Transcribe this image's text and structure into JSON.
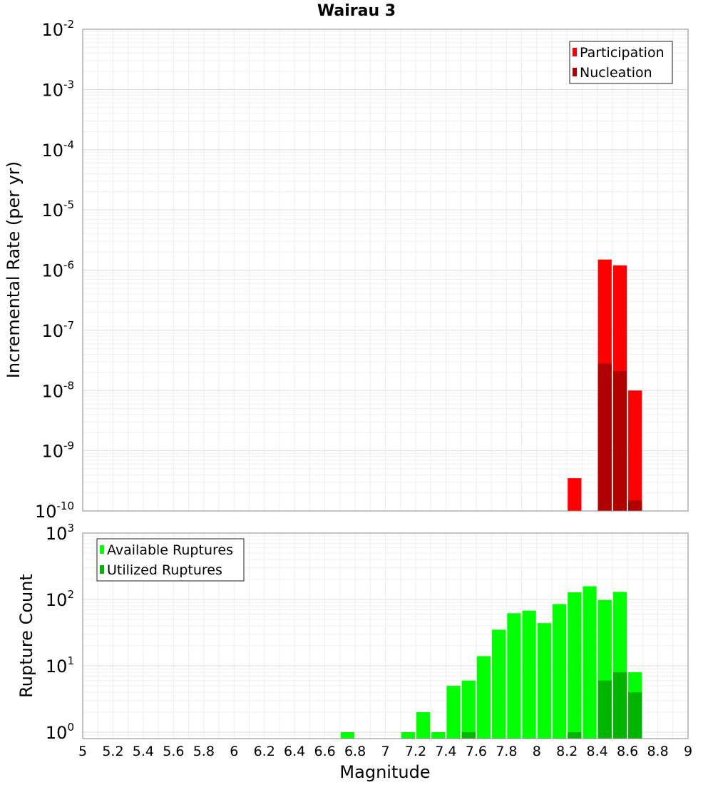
{
  "chart_data": [
    {
      "type": "bar",
      "title": "Wairau 3",
      "xlabel": "",
      "ylabel": "Incremental Rate (per yr)",
      "yscale": "log",
      "xlim": [
        5,
        9
      ],
      "ylim": [
        1e-10,
        0.01
      ],
      "bin_width": 0.1,
      "grid": true,
      "legend": "top-right",
      "y_tick_labels": [
        {
          "base": "10",
          "exp": "-10"
        },
        {
          "base": "10",
          "exp": "-9"
        },
        {
          "base": "10",
          "exp": "-8"
        },
        {
          "base": "10",
          "exp": "-7"
        },
        {
          "base": "10",
          "exp": "-6"
        },
        {
          "base": "10",
          "exp": "-5"
        },
        {
          "base": "10",
          "exp": "-4"
        },
        {
          "base": "10",
          "exp": "-3"
        },
        {
          "base": "10",
          "exp": "-2"
        }
      ],
      "series": [
        {
          "name": "Participation",
          "color": "#ff0000",
          "points": [
            [
              8.25,
              3.5e-10
            ],
            [
              8.45,
              1.5e-06
            ],
            [
              8.55,
              1.2e-06
            ],
            [
              8.65,
              1e-08
            ]
          ]
        },
        {
          "name": "Nucleation",
          "color": "#b00000",
          "points": [
            [
              8.45,
              2.8e-08
            ],
            [
              8.55,
              2.1e-08
            ],
            [
              8.65,
              1.5e-10
            ]
          ]
        }
      ]
    },
    {
      "type": "bar",
      "title": "",
      "xlabel": "Magnitude",
      "ylabel": "Rupture Count",
      "yscale": "log",
      "xlim": [
        5,
        9
      ],
      "ylim": [
        0.8,
        1000
      ],
      "bin_width": 0.1,
      "grid": true,
      "legend": "top-left",
      "x_tick_labels": [
        "5",
        "5.2",
        "5.4",
        "5.6",
        "5.8",
        "6",
        "6.2",
        "6.4",
        "6.6",
        "6.8",
        "7",
        "7.2",
        "7.4",
        "7.6",
        "7.8",
        "8",
        "8.2",
        "8.4",
        "8.6",
        "8.8",
        "9"
      ],
      "y_tick_labels": [
        {
          "base": "10",
          "exp": "0"
        },
        {
          "base": "10",
          "exp": "1"
        },
        {
          "base": "10",
          "exp": "2"
        },
        {
          "base": "10",
          "exp": "3"
        }
      ],
      "series": [
        {
          "name": "Available Ruptures",
          "color": "#00ff00",
          "points": [
            [
              6.75,
              1
            ],
            [
              7.15,
              1
            ],
            [
              7.25,
              2
            ],
            [
              7.35,
              1
            ],
            [
              7.45,
              5
            ],
            [
              7.55,
              6
            ],
            [
              7.65,
              14
            ],
            [
              7.75,
              35
            ],
            [
              7.85,
              62
            ],
            [
              7.95,
              68
            ],
            [
              8.05,
              44
            ],
            [
              8.15,
              85
            ],
            [
              8.25,
              128
            ],
            [
              8.35,
              158
            ],
            [
              8.45,
              98
            ],
            [
              8.55,
              130
            ],
            [
              8.65,
              8
            ]
          ]
        },
        {
          "name": "Utilized Ruptures",
          "color": "#00b400",
          "points": [
            [
              7.55,
              1
            ],
            [
              8.25,
              1
            ],
            [
              8.45,
              6
            ],
            [
              8.55,
              8
            ],
            [
              8.65,
              4
            ]
          ]
        }
      ]
    }
  ]
}
